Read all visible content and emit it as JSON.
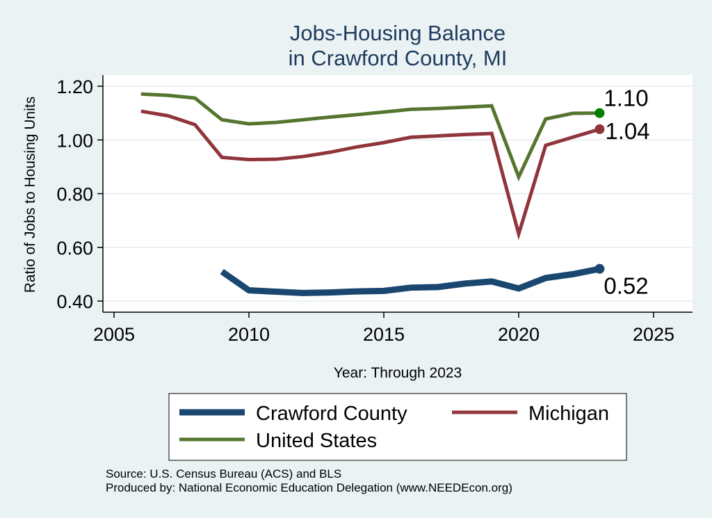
{
  "chart_data": {
    "type": "line",
    "title": [
      "Jobs-Housing Balance",
      "in Crawford County, MI"
    ],
    "xlabel": "Year: Through 2023",
    "ylabel": "Ratio of Jobs to Housing Units",
    "xlim": [
      2004.5,
      2026.5
    ],
    "ylim": [
      0.36,
      1.24
    ],
    "xticks": [
      2005,
      2010,
      2015,
      2020,
      2025
    ],
    "xtick_labels": [
      "2005",
      "2010",
      "2015",
      "2020",
      "2025"
    ],
    "yticks": [
      0.4,
      0.6,
      0.8,
      1.0,
      1.2
    ],
    "ytick_labels": [
      "0.40",
      "0.60",
      "0.80",
      "1.00",
      "1.20"
    ],
    "grid": true,
    "legend_position": "bottom",
    "series": [
      {
        "name": "Crawford County",
        "color": "#1a476f",
        "width": 9,
        "end_label": "0.52",
        "x": [
          2009,
          2010,
          2011,
          2012,
          2013,
          2014,
          2015,
          2016,
          2017,
          2018,
          2019,
          2020,
          2021,
          2022,
          2023
        ],
        "values": [
          0.51,
          0.44,
          0.435,
          0.43,
          0.432,
          0.436,
          0.438,
          0.45,
          0.452,
          0.465,
          0.473,
          0.447,
          0.486,
          0.5,
          0.52
        ]
      },
      {
        "name": "Michigan",
        "color": "#90353b",
        "width": 5,
        "end_label": "1.04",
        "x": [
          2006,
          2007,
          2008,
          2009,
          2010,
          2011,
          2012,
          2013,
          2014,
          2015,
          2016,
          2017,
          2018,
          2019,
          2020,
          2021,
          2022,
          2023
        ],
        "values": [
          1.107,
          1.09,
          1.057,
          0.935,
          0.927,
          0.928,
          0.938,
          0.954,
          0.974,
          0.99,
          1.01,
          1.015,
          1.02,
          1.024,
          0.65,
          0.98,
          1.01,
          1.04
        ]
      },
      {
        "name": "United States",
        "color": "#55752f",
        "marker_color": "#008000",
        "width": 5,
        "end_label": "1.10",
        "x": [
          2006,
          2007,
          2008,
          2009,
          2010,
          2011,
          2012,
          2013,
          2014,
          2015,
          2016,
          2017,
          2018,
          2019,
          2020,
          2021,
          2022,
          2023
        ],
        "values": [
          1.171,
          1.166,
          1.156,
          1.075,
          1.06,
          1.065,
          1.075,
          1.085,
          1.094,
          1.104,
          1.114,
          1.117,
          1.122,
          1.127,
          0.862,
          1.078,
          1.099,
          1.1
        ]
      }
    ],
    "notes": [
      "Source: U.S. Census Bureau (ACS) and BLS",
      "Produced by: National Economic Education Delegation (www.NEEDEcon.org)"
    ]
  }
}
